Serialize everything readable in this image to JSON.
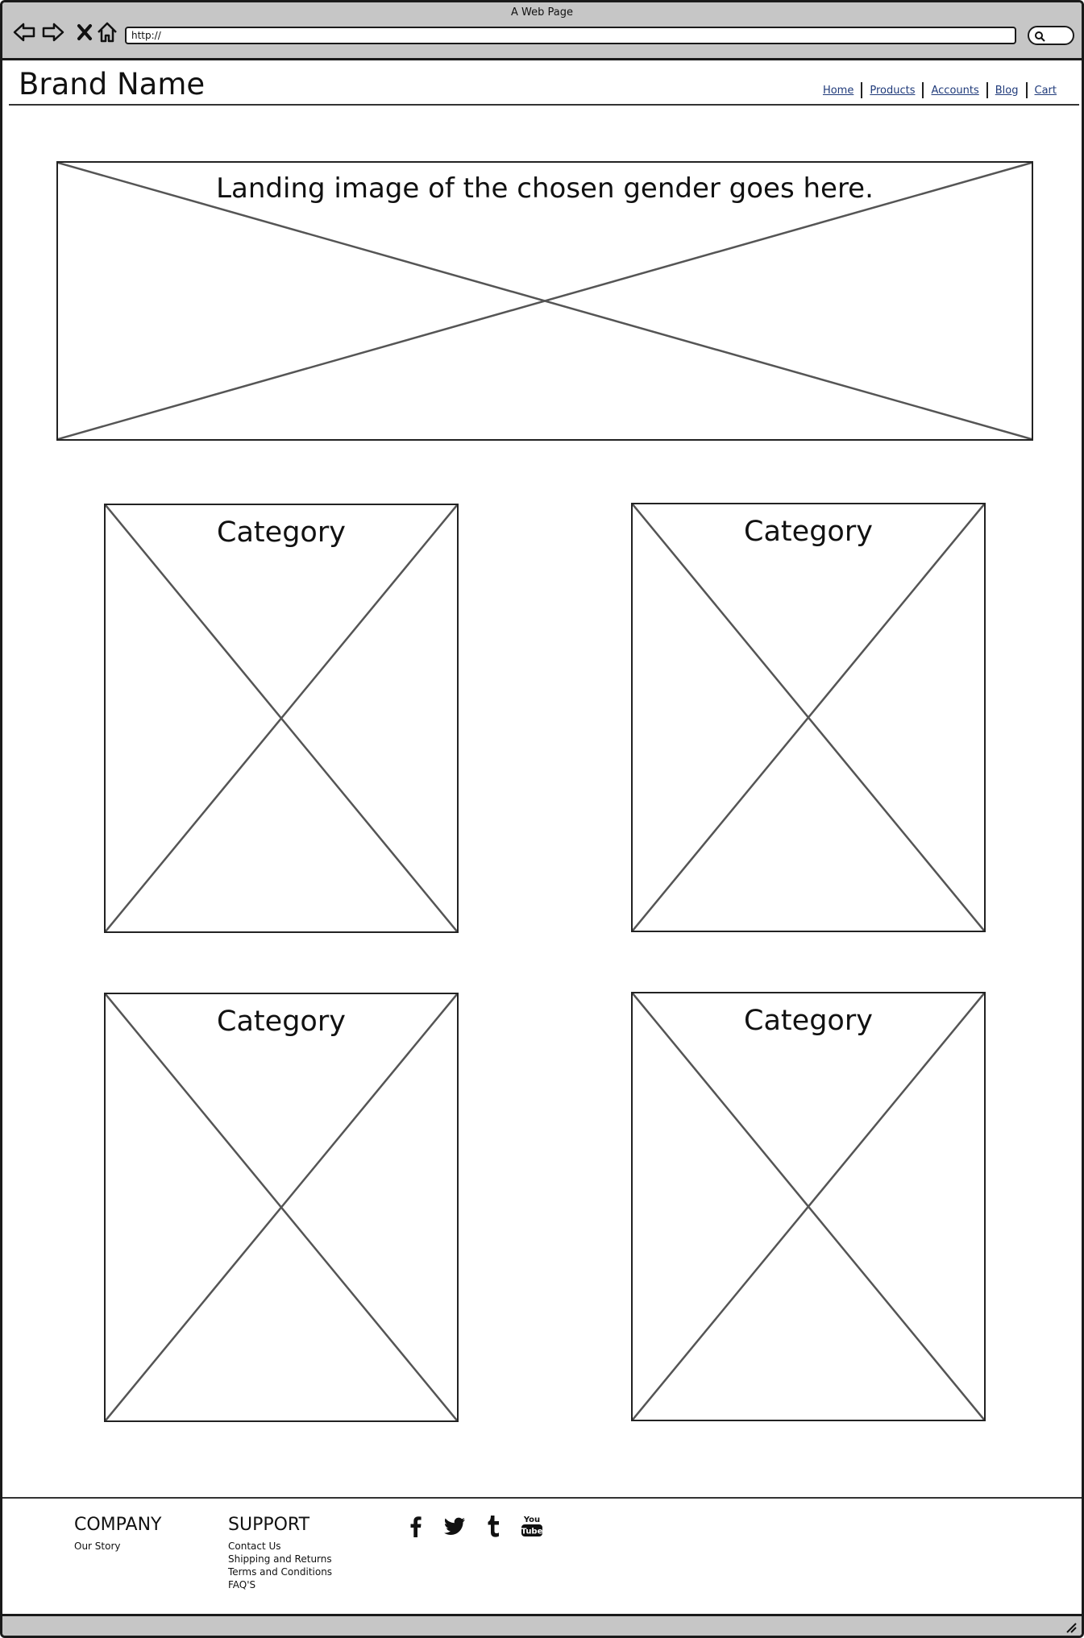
{
  "window": {
    "title": "A Web Page",
    "url": "http://"
  },
  "header": {
    "brand": "Brand Name",
    "nav": [
      {
        "label": "Home"
      },
      {
        "label": "Products"
      },
      {
        "label": "Accounts"
      },
      {
        "label": "Blog"
      },
      {
        "label": "Cart"
      }
    ]
  },
  "hero": {
    "label": "Landing image of the chosen gender goes here."
  },
  "categories": [
    {
      "label": "Category"
    },
    {
      "label": "Category"
    },
    {
      "label": "Category"
    },
    {
      "label": "Category"
    }
  ],
  "footer": {
    "company": {
      "heading": "COMPANY",
      "links": [
        "Our Story"
      ]
    },
    "support": {
      "heading": "SUPPORT",
      "links": [
        "Contact Us",
        "Shipping and Returns",
        "Terms and Conditions",
        "FAQ'S"
      ]
    },
    "social": [
      "facebook-icon",
      "twitter-icon",
      "tumblr-icon",
      "youtube-icon"
    ]
  }
}
